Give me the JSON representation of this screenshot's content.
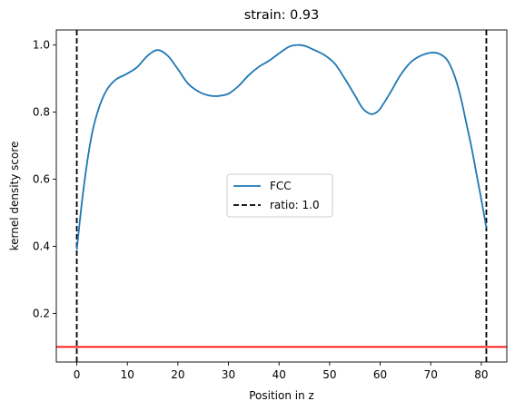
{
  "chart_data": {
    "type": "line",
    "title": "strain: 0.93",
    "xlabel": "Position in z",
    "ylabel": "kernel density score",
    "xlim": [
      -4.05,
      85.05
    ],
    "ylim": [
      0.055,
      1.045
    ],
    "xticks": [
      0,
      10,
      20,
      30,
      40,
      50,
      60,
      70,
      80
    ],
    "yticks": [
      0.2,
      0.4,
      0.6,
      0.8,
      1.0
    ],
    "xtick_labels": [
      "0",
      "10",
      "20",
      "30",
      "40",
      "50",
      "60",
      "70",
      "80"
    ],
    "ytick_labels": [
      "0.2",
      "0.4",
      "0.6",
      "0.8",
      "1.0"
    ],
    "grid": false,
    "legend_position": "center",
    "series": [
      {
        "name": "FCC",
        "color": "#1f77b4",
        "style": "solid",
        "x": [
          0,
          1,
          2,
          3,
          4,
          5,
          6,
          7,
          8,
          10,
          12,
          14,
          16,
          18,
          20,
          22,
          24,
          26,
          28,
          30,
          32,
          34,
          36,
          38,
          40,
          42,
          43.5,
          45,
          47,
          49,
          51,
          53,
          55,
          56.5,
          58,
          59,
          60,
          62,
          64,
          66,
          68,
          70,
          71.5,
          73,
          74,
          75,
          76,
          77,
          78,
          79,
          80,
          81
        ],
        "y": [
          0.39,
          0.53,
          0.645,
          0.735,
          0.795,
          0.838,
          0.868,
          0.887,
          0.9,
          0.915,
          0.935,
          0.968,
          0.985,
          0.968,
          0.928,
          0.885,
          0.862,
          0.85,
          0.848,
          0.855,
          0.878,
          0.91,
          0.935,
          0.953,
          0.975,
          0.995,
          1.0,
          0.998,
          0.985,
          0.97,
          0.945,
          0.9,
          0.85,
          0.812,
          0.795,
          0.797,
          0.81,
          0.858,
          0.91,
          0.948,
          0.968,
          0.977,
          0.975,
          0.96,
          0.935,
          0.895,
          0.84,
          0.77,
          0.7,
          0.62,
          0.54,
          0.455
        ]
      },
      {
        "name": "ratio: 1.0",
        "color": "#000000",
        "style": "dashed",
        "vlines": [
          0,
          81
        ]
      }
    ],
    "hlines": [
      {
        "y": 0.1,
        "color": "#ff0000"
      }
    ]
  }
}
